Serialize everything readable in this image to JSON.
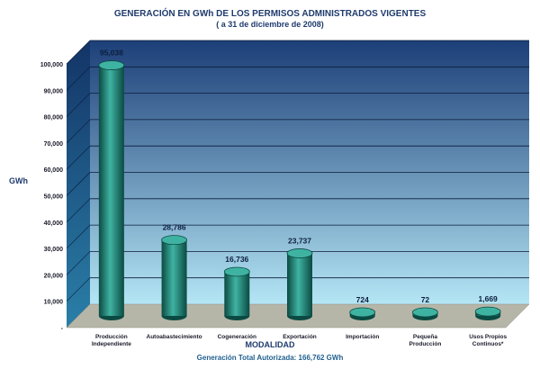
{
  "chart_data": {
    "type": "bar",
    "title": "GENERACIÓN EN GWh DE LOS PERMISOS ADMINISTRADOS VIGENTES",
    "subtitle": "( a 31 de diciembre de 2008)",
    "xlabel": "MODALIDAD",
    "ylabel": "GWh",
    "categories": [
      [
        "Producción",
        "Independiente"
      ],
      [
        "Autoabastecimiento"
      ],
      [
        "Cogeneración"
      ],
      [
        "Exportación"
      ],
      [
        "Importación"
      ],
      [
        "Pequeña",
        "Producción"
      ],
      [
        "Usos Propios",
        "Continuos*"
      ]
    ],
    "values": [
      95038,
      28786,
      16736,
      23737,
      724,
      72,
      1669
    ],
    "value_labels": [
      "95,038",
      "28,786",
      "16,736",
      "23,737",
      "724",
      "72",
      "1,669"
    ],
    "ylim": [
      0,
      100000
    ],
    "yticks": [
      0,
      10000,
      20000,
      30000,
      40000,
      50000,
      60000,
      70000,
      80000,
      90000,
      100000
    ],
    "ytick_labels": [
      "-",
      "10,000",
      "20,000",
      "30,000",
      "40,000",
      "50,000",
      "60,000",
      "70,000",
      "80,000",
      "90,000",
      "100,000"
    ],
    "grid": true,
    "footer": "Generación Total Autorizada: 166,762 GWh",
    "colors": {
      "bar": "#1a7a6e",
      "bar_dark": "#0b4a42",
      "bar_light": "#3fb3a2",
      "wall_top": "#1c3f78",
      "wall_bottom": "#b4e6f5",
      "floor": "#b6b6a8",
      "title": "#1f3b6e"
    }
  }
}
